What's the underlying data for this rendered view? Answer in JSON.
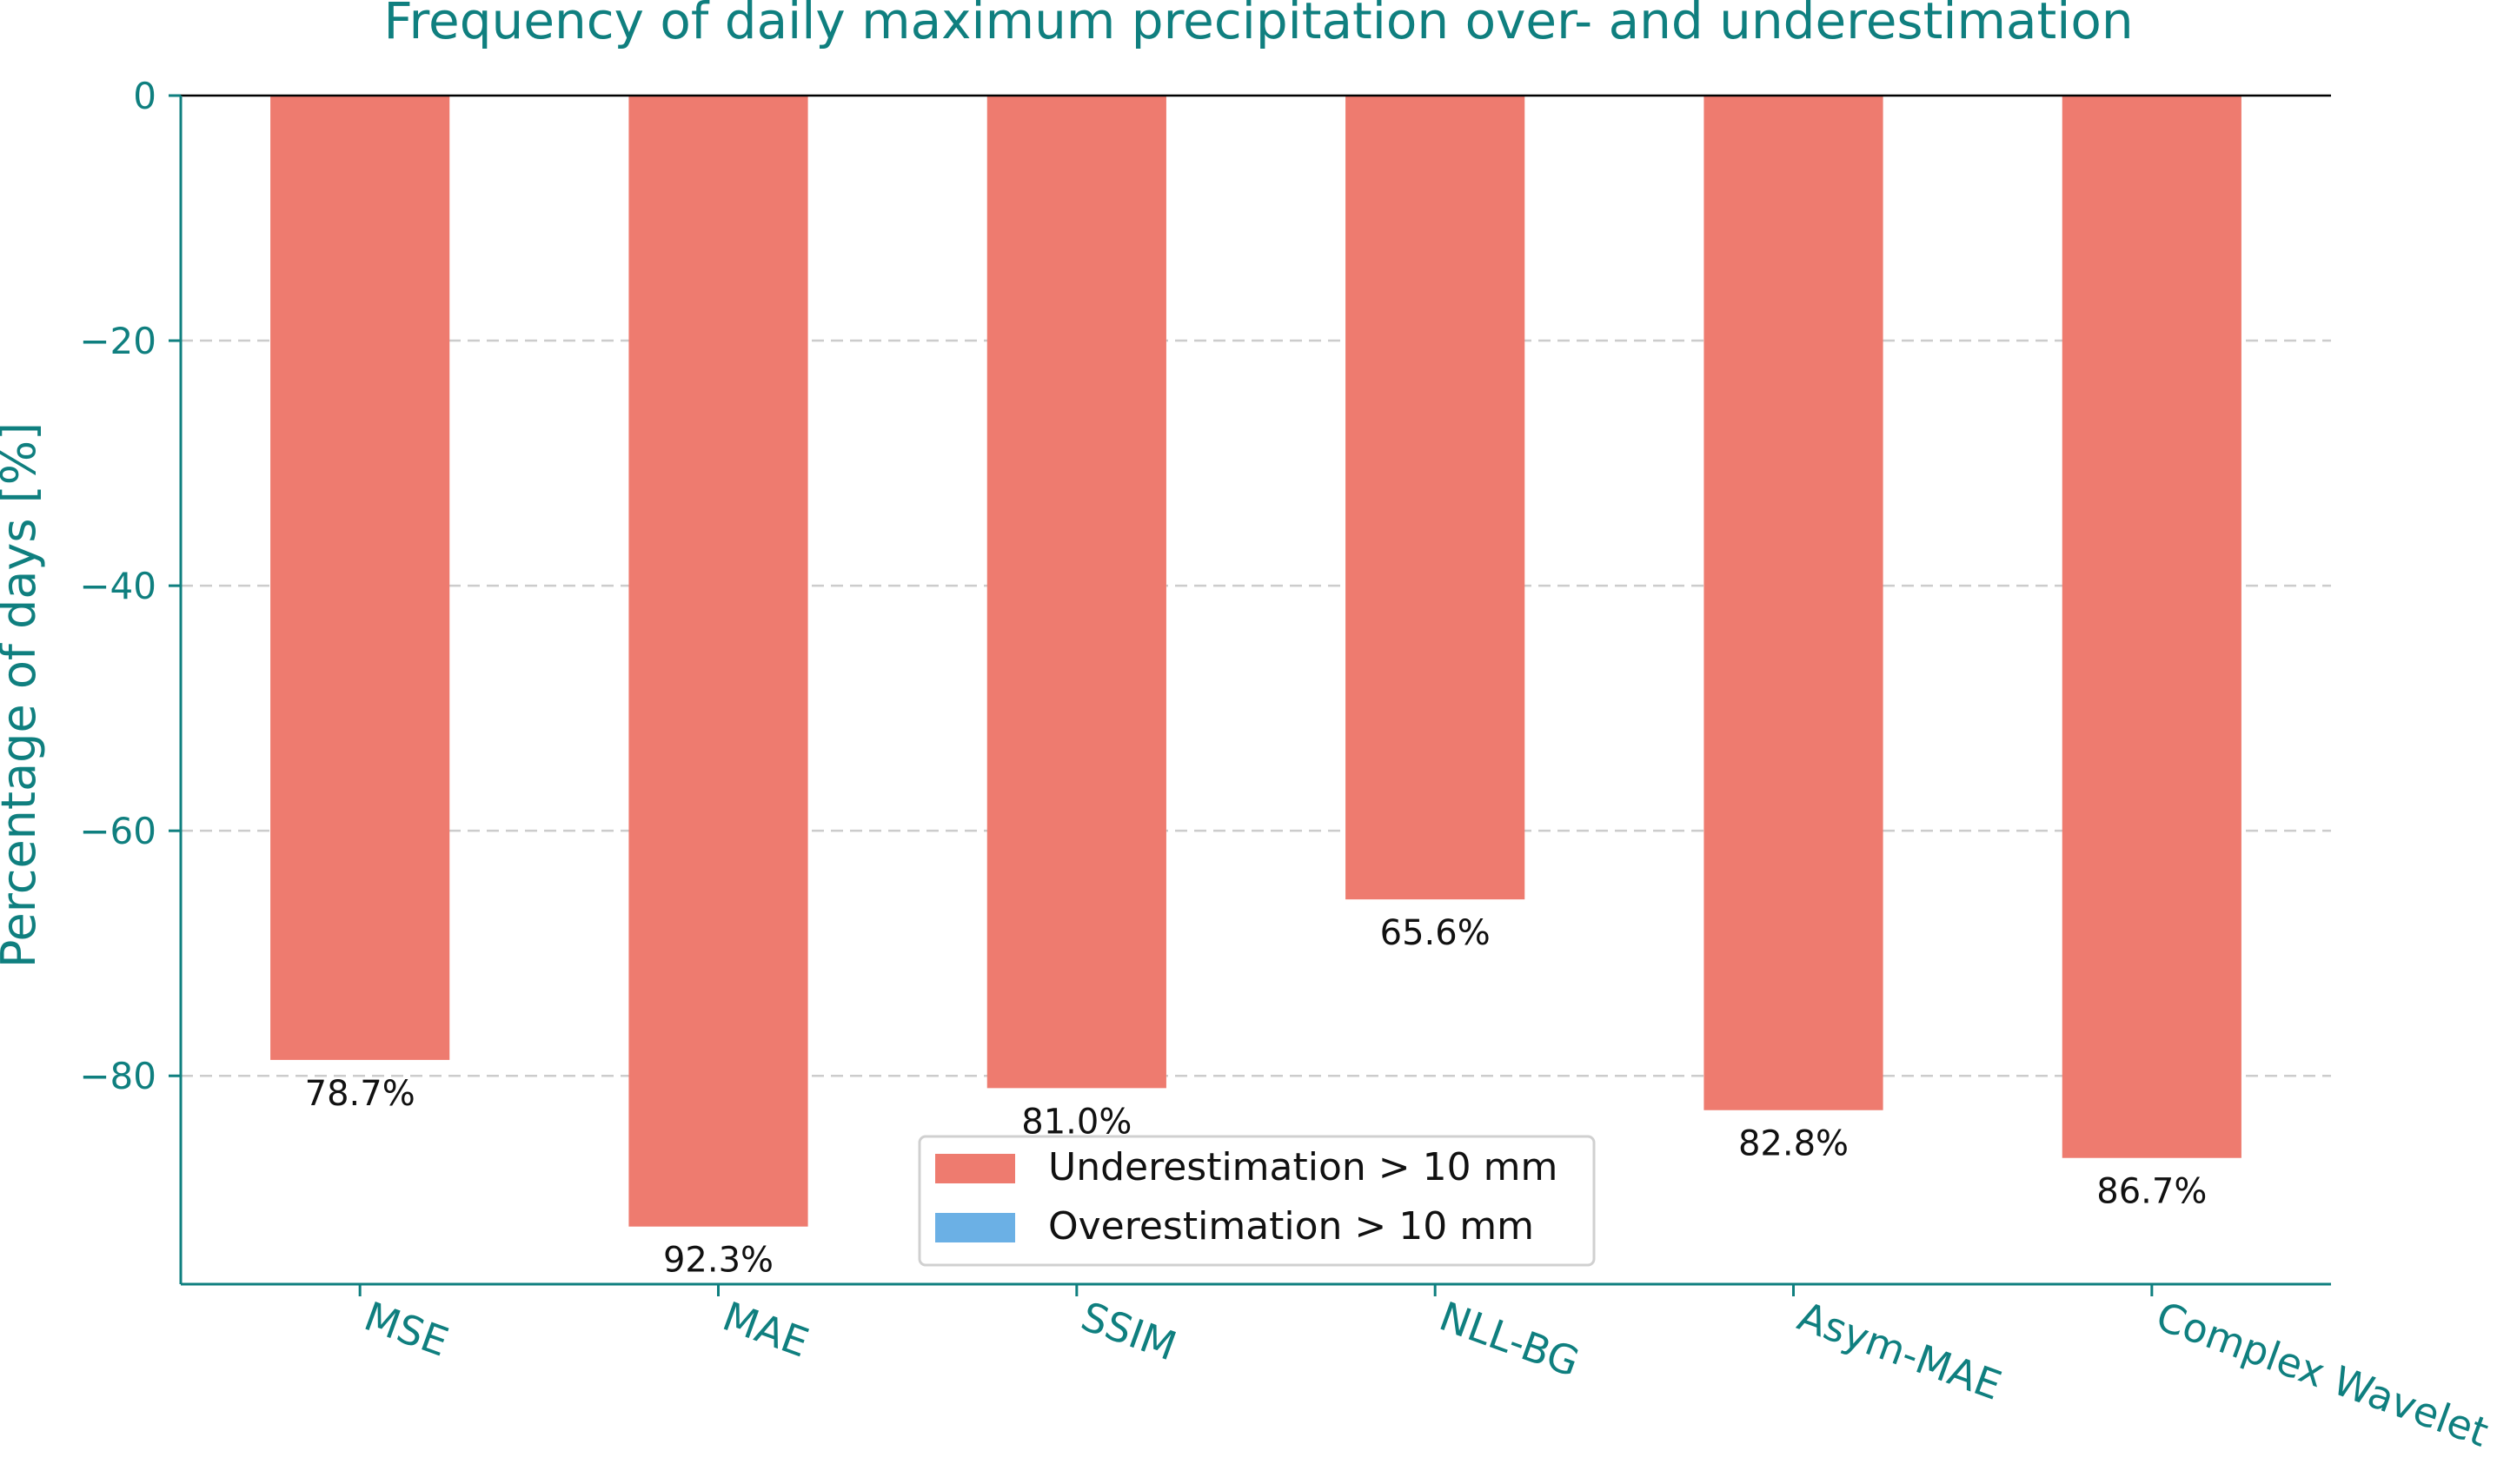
{
  "chart_data": {
    "type": "bar",
    "title": "Frequency of daily maximum precipitation over- and underestimation",
    "xlabel": "",
    "ylabel": "Percentage of days [%]",
    "categories": [
      "MSE",
      "MAE",
      "SSIM",
      "NLL-BG",
      "Asym-MAE",
      "Complex Wavelet"
    ],
    "series": [
      {
        "name": "Underestimation > 10 mm",
        "color": "#ee7b6f",
        "values": [
          -78.7,
          -92.3,
          -81.0,
          -65.6,
          -82.8,
          -86.7
        ],
        "labels": [
          "78.7%",
          "92.3%",
          "81.0%",
          "65.6%",
          "82.8%",
          "86.7%"
        ]
      },
      {
        "name": "Overestimation > 10 mm",
        "color": "#6bb0e5",
        "values": [
          0,
          0,
          0,
          0,
          0,
          0
        ]
      }
    ],
    "ylim": [
      -97,
      0
    ],
    "yticks": [
      0,
      -20,
      -40,
      -60,
      -80
    ],
    "ytick_labels": [
      "0",
      "−20",
      "−40",
      "−60",
      "−80"
    ],
    "grid": "horizontal dashed",
    "legend_position": "bottom-center",
    "axis_color": "#0f7f7f",
    "grid_color": "#cccccc"
  }
}
